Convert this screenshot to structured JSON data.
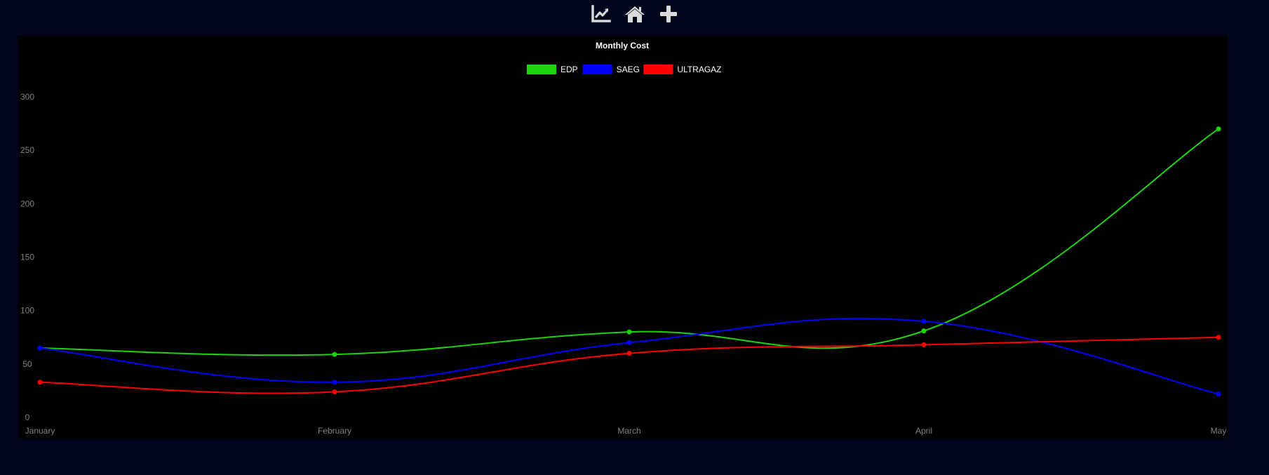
{
  "toolbar": {
    "items": [
      {
        "icon": "line-chart-icon"
      },
      {
        "icon": "home-icon"
      },
      {
        "icon": "plus-icon"
      }
    ],
    "icon_color": "#d9d9d9"
  },
  "chart_data": {
    "type": "line",
    "title": "Monthly Cost",
    "xlabel": "",
    "ylabel": "",
    "categories": [
      "January",
      "February",
      "March",
      "April",
      "May"
    ],
    "ylim": [
      0,
      325
    ],
    "yticks": [
      0,
      50,
      100,
      150,
      200,
      250,
      300
    ],
    "grid": false,
    "legend_position": "top-center",
    "curve": "smooth",
    "series": [
      {
        "name": "EDP",
        "color": "#1ed40e",
        "values": [
          65,
          59,
          80,
          81,
          270
        ]
      },
      {
        "name": "SAEG",
        "color": "#0000ff",
        "values": [
          65,
          33,
          70,
          90,
          22
        ]
      },
      {
        "name": "ULTRAGAZ",
        "color": "#ff0000",
        "values": [
          33,
          24,
          60,
          68,
          75
        ]
      }
    ],
    "colors": {
      "title": "#ffffff",
      "legend_text": "#ffffff",
      "tick_label": "#808080",
      "background": "#000000"
    }
  }
}
